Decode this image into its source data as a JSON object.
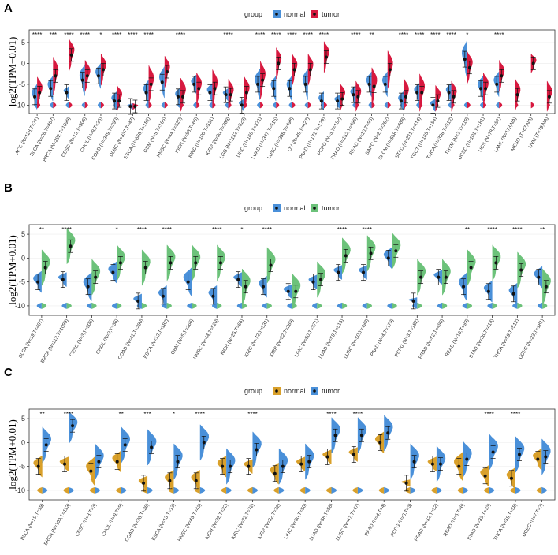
{
  "figure_labels": [
    "A",
    "B",
    "C"
  ],
  "chart_data": [
    {
      "type": "split-violin",
      "panel": "A",
      "legend_title": "group",
      "series": [
        {
          "name": "normal",
          "color": "#4a90d9"
        },
        {
          "name": "tumor",
          "color": "#d7193f"
        }
      ],
      "ylabel": "log2(TPM+0.01)",
      "yticks": [
        -10,
        -5,
        0,
        5
      ],
      "ylim": [
        -12,
        8
      ],
      "categories": [
        "ACC (N=128,T=77)",
        "BLCA (N=28,T=407)",
        "BRCA (N=292,T=1099)",
        "CESC (N=13,T=306)",
        "CHOL (N=9,T=36)",
        "COAD (N=349,T=290)",
        "DLBC (N=337,T=47)",
        "ESCA (N=668,T=182)",
        "GBM (N=5,T=166)",
        "HNSC (N=44,T=520)",
        "KICH (N=53,T=66)",
        "KIRC (N=100,T=531)",
        "KIRP (N=60,T=289)",
        "LGG (N=1152,T=523)",
        "LIHC (N=160,T=371)",
        "LUAD (N=347,T=515)",
        "LUSC (N=338,T=498)",
        "OV (N=88,T=427)",
        "PAAD (N=171,T=179)",
        "PCPG (N=3,T=182)",
        "PRAD (N=152,T=496)",
        "READ (N=10,T=93)",
        "SARC (N=2,T=262)",
        "SKCM (N=558,T=469)",
        "STAD (N=211,T=414)",
        "TGCT (N=165,T=154)",
        "THCA (N=338,T=512)",
        "THYM (N=2,T=119)",
        "UCEC (N=101,T=181)",
        "UCS (N=78,T=57)",
        "LAML (N=173,NA)",
        "MESO (T=87,NA)",
        "UVM (T=79,NA)"
      ],
      "significance": [
        "****",
        "***",
        "****",
        "****",
        "*",
        "****",
        "****",
        "****",
        "",
        "****",
        "",
        "",
        "****",
        "",
        "****",
        "****",
        "****",
        "****",
        "****",
        "",
        "****",
        "**",
        "",
        "****",
        "****",
        "****",
        "****",
        "*",
        "",
        "****",
        "",
        "",
        ""
      ],
      "normal_median": [
        -8,
        -6,
        -7,
        -4,
        -3,
        -9,
        -10.3,
        -7,
        -4.5,
        -8,
        -5,
        -7,
        -7.5,
        -10,
        -5,
        -6,
        -6,
        -5,
        -9,
        -9,
        -7.5,
        -5,
        -5,
        -9,
        -7,
        -10,
        -7,
        1,
        -6,
        -5,
        null,
        null,
        null
      ],
      "tumor_median": [
        -7,
        -3,
        2,
        -3,
        -1.5,
        -9,
        -10.3,
        -5,
        -2,
        -8,
        -6,
        -6,
        -7.5,
        -7,
        -4,
        0,
        -1.5,
        -1.5,
        1.5,
        -8.5,
        -8,
        -5.5,
        -1.5,
        -8,
        -7,
        -9,
        -8,
        -1,
        -6,
        -3,
        -7.5,
        0,
        -8
      ],
      "normal_spread": [
        4,
        4,
        2,
        5,
        4,
        3,
        1,
        4,
        5,
        3,
        3,
        3,
        2,
        2,
        5,
        4,
        4,
        5,
        3,
        2,
        3,
        4,
        4,
        3,
        3,
        2,
        3,
        6,
        4,
        4,
        null,
        null,
        null
      ],
      "tumor_spread": [
        5,
        6,
        5,
        5,
        5,
        5,
        1,
        6,
        5,
        6,
        5,
        6,
        5,
        5,
        6,
        5,
        5,
        5,
        5,
        5,
        5,
        6,
        6,
        6,
        6,
        5,
        5,
        5,
        5,
        5,
        5,
        3,
        5
      ]
    },
    {
      "type": "split-violin",
      "panel": "B",
      "legend_title": "group",
      "series": [
        {
          "name": "normal",
          "color": "#4a90d9"
        },
        {
          "name": "tumor",
          "color": "#6cc27a"
        }
      ],
      "ylabel": "log2(TPM+0.01)",
      "yticks": [
        -10,
        -5,
        0,
        5
      ],
      "ylim": [
        -12,
        7
      ],
      "categories": [
        "BLCA (N=19,T=407)",
        "BRCA (N=113,T=1099)",
        "CESC (N=3,T=306)",
        "CHOL (N=9,T=36)",
        "COAD (N=41,T=290)",
        "ESCA (N=13,T=182)",
        "GBM (N=5,T=166)",
        "HNSC (N=44,T=520)",
        "KICH (N=25,T=66)",
        "KIRC (N=72,T=531)",
        "KIRP (N=32,T=289)",
        "LIHC (N=50,T=371)",
        "LUAD (N=59,T=515)",
        "LUSC (N=50,T=498)",
        "PAAD (N=4,T=179)",
        "PCPG (N=3,T=182)",
        "PRAD (N=52,T=496)",
        "READ (N=10,T=93)",
        "STAD (N=36,T=414)",
        "THCA (N=59,T=512)",
        "UCEC (N=23,T=181)"
      ],
      "significance": [
        "**",
        "****",
        "",
        "*",
        "****",
        "****",
        "",
        "****",
        "*",
        "****",
        "",
        "",
        "****",
        "****",
        "",
        "",
        "",
        "**",
        "****",
        "****",
        "**"
      ],
      "normal_median": [
        -5,
        -4.5,
        -6,
        -3,
        -9,
        -8,
        -5,
        -8,
        -4.5,
        -6,
        -7,
        -5,
        -3,
        -3,
        0,
        -9,
        -4,
        -6,
        -7,
        -7.5,
        -4
      ],
      "tumor_median": [
        -2,
        2.5,
        -4,
        -1,
        -2,
        -1,
        -1,
        -1,
        -6,
        -1.5,
        -7,
        -4.5,
        0.5,
        1,
        1.5,
        -4,
        -4,
        -2,
        -1,
        -2.5,
        -6
      ],
      "normal_spread": [
        3,
        2,
        4,
        3,
        2,
        3,
        4,
        3,
        2,
        3,
        2,
        2,
        2,
        2,
        3,
        1,
        2,
        4,
        3,
        3,
        3
      ],
      "tumor_spread": [
        5,
        5,
        5,
        5,
        5,
        5,
        5,
        5,
        5,
        5,
        5,
        5,
        5,
        5,
        5,
        5,
        5,
        5,
        5,
        5,
        5
      ]
    },
    {
      "type": "split-violin",
      "panel": "C",
      "legend_title": "group",
      "series": [
        {
          "name": "normal",
          "color": "#d9a02a"
        },
        {
          "name": "tumor",
          "color": "#4a90d9"
        }
      ],
      "ylabel": "log2(TPM+0.01)",
      "yticks": [
        -10,
        -5,
        0,
        5
      ],
      "ylim": [
        -12,
        7
      ],
      "categories": [
        "BLCA (N=19,T=19)",
        "BRCA (N=109,T=113)",
        "CESC (N=3,T=3)",
        "CHOL (N=9,T=9)",
        "COAD (N=26,T=26)",
        "ESCA (N=13,T=13)",
        "HNSC (N=43,T=43)",
        "KICH (N=22,T=22)",
        "KIRC (N=72,T=72)",
        "KIRP (N=32,T=32)",
        "LIHC (N=50,T=50)",
        "LUAD (N=58,T=58)",
        "LUSC (N=47,T=47)",
        "PAAD (N=4,T=4)",
        "PCPG (N=3,T=3)",
        "PRAD (N=52,T=52)",
        "READ (N=6,T=6)",
        "STAD (N=33,T=33)",
        "THCA (N=58,T=58)",
        "UCEC (N=7,T=7)"
      ],
      "significance": [
        "**",
        "****",
        "",
        "**",
        "***",
        "*",
        "****",
        "",
        "****",
        "",
        "",
        "****",
        "****",
        "",
        "",
        "",
        "",
        "****",
        "****",
        ""
      ],
      "normal_median": [
        -5,
        -4.5,
        -6,
        -4,
        -8.5,
        -8,
        -8,
        -5,
        -5,
        -6.5,
        -4.5,
        -3,
        -2.5,
        0,
        -8.5,
        -4.5,
        -5,
        -7,
        -7.5,
        -3.5
      ],
      "tumor_median": [
        -0.5,
        3.5,
        -4,
        -0.5,
        -1,
        -4,
        0,
        -5,
        -1.5,
        -5,
        -4,
        1.5,
        1.5,
        2,
        -4,
        -4.5,
        -3.5,
        -2,
        -2.5,
        -3
      ],
      "normal_spread": [
        3,
        2,
        4,
        3,
        2,
        3,
        3,
        3,
        2,
        3,
        2,
        2,
        2,
        3,
        1,
        2,
        4,
        3,
        3,
        3
      ],
      "tumor_spread": [
        5,
        5,
        5,
        5,
        5,
        5,
        5,
        5,
        5,
        5,
        5,
        5,
        5,
        5,
        5,
        5,
        5,
        5,
        5,
        5
      ]
    }
  ]
}
